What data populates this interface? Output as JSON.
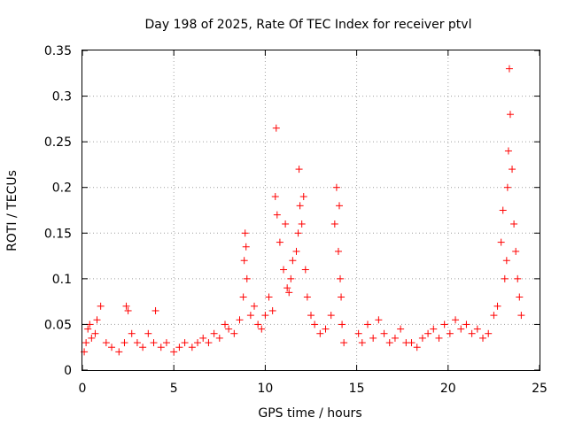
{
  "chart_data": {
    "type": "scatter",
    "title": "Day 198 of 2025, Rate Of TEC Index for receiver ptvl",
    "xlabel": "GPS time / hours",
    "ylabel": "ROTI / TECUs",
    "xlim": [
      0,
      25
    ],
    "ylim": [
      0,
      0.35
    ],
    "xticks": [
      "0",
      "5",
      "10",
      "15",
      "20",
      "25"
    ],
    "yticks": [
      "0",
      "0.05",
      "0.1",
      "0.15",
      "0.2",
      "0.25",
      "0.3",
      "0.35"
    ],
    "marker": "+",
    "color": "#ff0000",
    "grid": true,
    "series": [
      {
        "name": "ROTI",
        "x": [
          0.1,
          0.2,
          0.3,
          0.4,
          0.5,
          0.7,
          0.8,
          1.0,
          1.3,
          1.6,
          2.0,
          2.3,
          2.4,
          2.5,
          2.7,
          3.0,
          3.3,
          3.6,
          3.9,
          4.0,
          4.3,
          4.6,
          5.0,
          5.3,
          5.6,
          6.0,
          6.3,
          6.6,
          6.9,
          7.2,
          7.5,
          7.8,
          8.0,
          8.3,
          8.6,
          8.8,
          8.85,
          8.9,
          8.95,
          9.0,
          9.2,
          9.4,
          9.6,
          9.8,
          10.0,
          10.2,
          10.4,
          10.55,
          10.6,
          10.65,
          10.8,
          11.0,
          11.1,
          11.2,
          11.3,
          11.4,
          11.5,
          11.7,
          11.8,
          11.85,
          11.9,
          12.0,
          12.1,
          12.2,
          12.3,
          12.5,
          12.7,
          13.0,
          13.3,
          13.6,
          13.8,
          13.9,
          14.0,
          14.05,
          14.1,
          14.15,
          14.2,
          14.3,
          15.1,
          15.3,
          15.6,
          15.9,
          16.2,
          16.5,
          16.8,
          17.1,
          17.4,
          17.7,
          18.0,
          18.3,
          18.6,
          18.9,
          19.2,
          19.5,
          19.8,
          20.1,
          20.4,
          20.7,
          21.0,
          21.3,
          21.6,
          21.9,
          22.2,
          22.5,
          22.7,
          22.9,
          23.0,
          23.1,
          23.2,
          23.25,
          23.3,
          23.35,
          23.4,
          23.5,
          23.6,
          23.7,
          23.8,
          23.9,
          24.0
        ],
        "y": [
          0.02,
          0.03,
          0.045,
          0.05,
          0.035,
          0.04,
          0.055,
          0.07,
          0.03,
          0.025,
          0.02,
          0.03,
          0.07,
          0.065,
          0.04,
          0.03,
          0.025,
          0.04,
          0.03,
          0.065,
          0.025,
          0.03,
          0.02,
          0.025,
          0.03,
          0.025,
          0.03,
          0.035,
          0.03,
          0.04,
          0.035,
          0.05,
          0.045,
          0.04,
          0.055,
          0.08,
          0.12,
          0.15,
          0.135,
          0.1,
          0.06,
          0.07,
          0.05,
          0.045,
          0.06,
          0.08,
          0.065,
          0.19,
          0.265,
          0.17,
          0.14,
          0.11,
          0.16,
          0.09,
          0.085,
          0.1,
          0.12,
          0.13,
          0.15,
          0.22,
          0.18,
          0.16,
          0.19,
          0.11,
          0.08,
          0.06,
          0.05,
          0.04,
          0.045,
          0.06,
          0.16,
          0.2,
          0.13,
          0.18,
          0.1,
          0.08,
          0.05,
          0.03,
          0.04,
          0.03,
          0.05,
          0.035,
          0.055,
          0.04,
          0.03,
          0.035,
          0.045,
          0.03,
          0.03,
          0.025,
          0.035,
          0.04,
          0.045,
          0.035,
          0.05,
          0.04,
          0.055,
          0.045,
          0.05,
          0.04,
          0.045,
          0.035,
          0.04,
          0.06,
          0.07,
          0.14,
          0.175,
          0.1,
          0.12,
          0.2,
          0.24,
          0.33,
          0.28,
          0.22,
          0.16,
          0.13,
          0.1,
          0.08,
          0.06
        ]
      }
    ]
  }
}
